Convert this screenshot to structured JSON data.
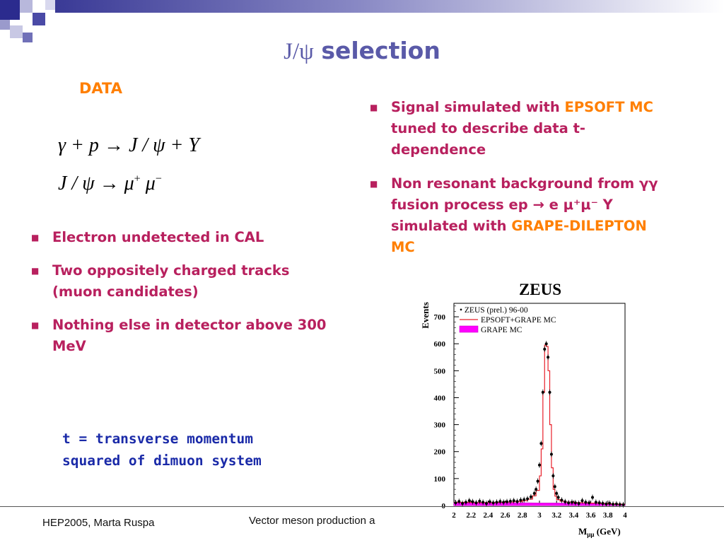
{
  "title": {
    "jpsi": "J/ψ",
    "word": "selection"
  },
  "data_label": "DATA",
  "equations": {
    "eq1": {
      "lhs": "γ + p",
      "arrow": "→",
      "rhs": "J / ψ + Y"
    },
    "eq2": {
      "lhs": "J / ψ",
      "arrow": "→",
      "mu": "μ",
      "plus": "+",
      "minus": "−"
    }
  },
  "left_bullets": [
    {
      "text": "Electron undetected in CAL"
    },
    {
      "text": "Two oppositely charged tracks (muon candidates)"
    },
    {
      "text": "Nothing else in detector above 300 MeV"
    }
  ],
  "right_bullets": [
    {
      "a": "Signal simulated with ",
      "b": "EPSOFT MC",
      "c": " tuned to describe data t-dependence"
    },
    {
      "a": "Non resonant background from γγ fusion process ep → e μ⁺μ⁻ Y simulated with ",
      "b": "GRAPE-DILEPTON MC",
      "c": ""
    }
  ],
  "note": "t = transverse momentum squared of dimuon system",
  "footer": {
    "left": "HEP2005, Marta Ruspa",
    "center": "Vector meson production a"
  },
  "colors": {
    "title": "#5a5aa8",
    "bullet": "#b8205e",
    "highlight": "#ff7f00",
    "note": "#1a2aa8"
  },
  "chart_data": {
    "type": "line",
    "title": "ZEUS",
    "xlabel": "Mμμ (GeV)",
    "ylabel": "Events",
    "xlim": [
      2,
      4
    ],
    "ylim": [
      0,
      750
    ],
    "xticks": [
      "2",
      "2.2",
      "2.4",
      "2.6",
      "2.8",
      "3",
      "3.2",
      "3.4",
      "3.6",
      "3.8",
      "4"
    ],
    "yticks": [
      "0",
      "100",
      "200",
      "300",
      "400",
      "500",
      "600",
      "700"
    ],
    "legend": [
      "• ZEUS (prel.) 96-00",
      "EPSOFT+GRAPE MC",
      "GRAPE MC"
    ],
    "legend_position": "top-left",
    "series": [
      {
        "name": "ZEUS (prel.) 96-00",
        "kind": "points",
        "x": [
          2.02,
          2.06,
          2.1,
          2.14,
          2.18,
          2.22,
          2.26,
          2.3,
          2.34,
          2.38,
          2.42,
          2.46,
          2.5,
          2.54,
          2.58,
          2.62,
          2.66,
          2.7,
          2.74,
          2.78,
          2.82,
          2.86,
          2.9,
          2.94,
          2.96,
          2.98,
          3.0,
          3.02,
          3.04,
          3.06,
          3.08,
          3.1,
          3.12,
          3.14,
          3.16,
          3.18,
          3.2,
          3.22,
          3.26,
          3.3,
          3.34,
          3.38,
          3.42,
          3.46,
          3.5,
          3.54,
          3.58,
          3.62,
          3.66,
          3.7,
          3.74,
          3.78,
          3.82,
          3.86,
          3.9,
          3.94,
          3.98
        ],
        "y": [
          10,
          15,
          8,
          12,
          18,
          14,
          10,
          16,
          12,
          8,
          14,
          10,
          12,
          15,
          12,
          14,
          16,
          18,
          15,
          20,
          22,
          25,
          32,
          45,
          60,
          90,
          150,
          230,
          420,
          580,
          600,
          550,
          420,
          190,
          110,
          70,
          45,
          30,
          20,
          14,
          10,
          12,
          10,
          8,
          18,
          12,
          10,
          30,
          12,
          10,
          8,
          6,
          8,
          5,
          6,
          4,
          3
        ]
      },
      {
        "name": "EPSOFT+GRAPE MC",
        "kind": "histogram",
        "x": [
          2.0,
          2.1,
          2.2,
          2.3,
          2.4,
          2.5,
          2.6,
          2.7,
          2.8,
          2.86,
          2.92,
          2.96,
          3.0,
          3.02,
          3.04,
          3.06,
          3.08,
          3.1,
          3.12,
          3.14,
          3.16,
          3.18,
          3.2,
          3.24,
          3.3,
          3.4,
          3.5,
          3.6,
          3.7,
          3.8,
          3.9,
          4.0
        ],
        "y": [
          12,
          12,
          11,
          11,
          11,
          12,
          13,
          15,
          18,
          24,
          36,
          56,
          110,
          210,
          420,
          595,
          590,
          500,
          300,
          140,
          60,
          35,
          22,
          16,
          13,
          11,
          10,
          9,
          8,
          6,
          5,
          0
        ]
      },
      {
        "name": "GRAPE MC",
        "kind": "filled",
        "x": [
          2.0,
          2.2,
          2.4,
          2.6,
          2.8,
          3.0,
          3.2,
          3.4,
          3.6,
          3.8,
          4.0
        ],
        "y": [
          10,
          10,
          10,
          10,
          10,
          9,
          9,
          8,
          7,
          5,
          3
        ]
      }
    ]
  }
}
